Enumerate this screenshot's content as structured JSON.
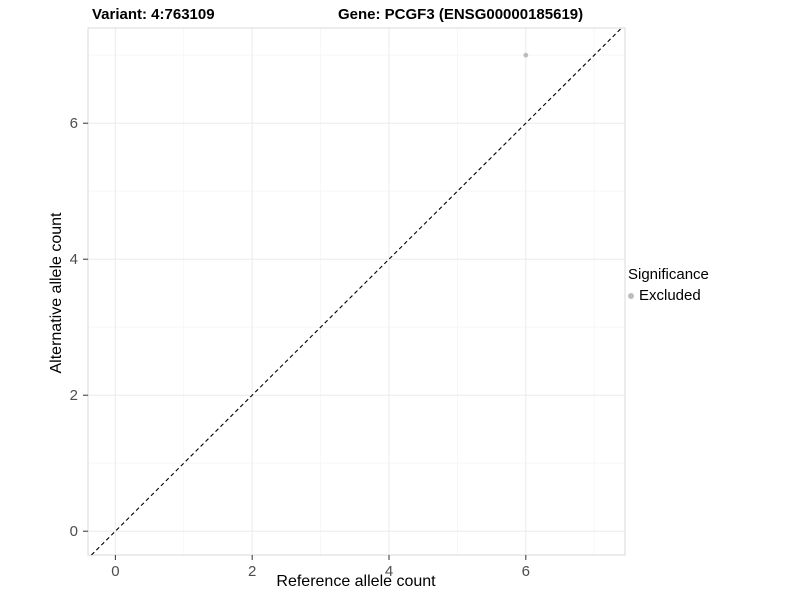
{
  "chart_data": {
    "type": "scatter",
    "title_left": "Variant: 4:763109",
    "title_right": "Gene: PCGF3 (ENSG00000185619)",
    "xlabel": "Reference allele count",
    "ylabel": "Alternative allele count",
    "xlim": [
      -0.4,
      7.45
    ],
    "ylim": [
      -0.35,
      7.4
    ],
    "xticks": [
      0,
      2,
      4,
      6
    ],
    "yticks": [
      0,
      2,
      4,
      6
    ],
    "xticks_minor": [
      1,
      3,
      5,
      7
    ],
    "yticks_minor": [
      1,
      3,
      5,
      7
    ],
    "grid": true,
    "legend_position": "right",
    "identity_line": {
      "style": "dashed",
      "color": "#000000",
      "from": -0.35,
      "to": 7.4
    },
    "series": [
      {
        "name": "Excluded",
        "color": "#bdbdbd",
        "points": [
          {
            "x": 6,
            "y": 7
          }
        ]
      }
    ],
    "legend": {
      "title": "Significance",
      "entries": [
        {
          "label": "Excluded",
          "color": "#bdbdbd"
        }
      ]
    },
    "colors": {
      "grid_major": "#ebebeb",
      "grid_minor": "#f5f5f5",
      "panel_border": "#d9d9d9",
      "tick": "#333333",
      "tick_label": "#4d4d4d"
    }
  }
}
